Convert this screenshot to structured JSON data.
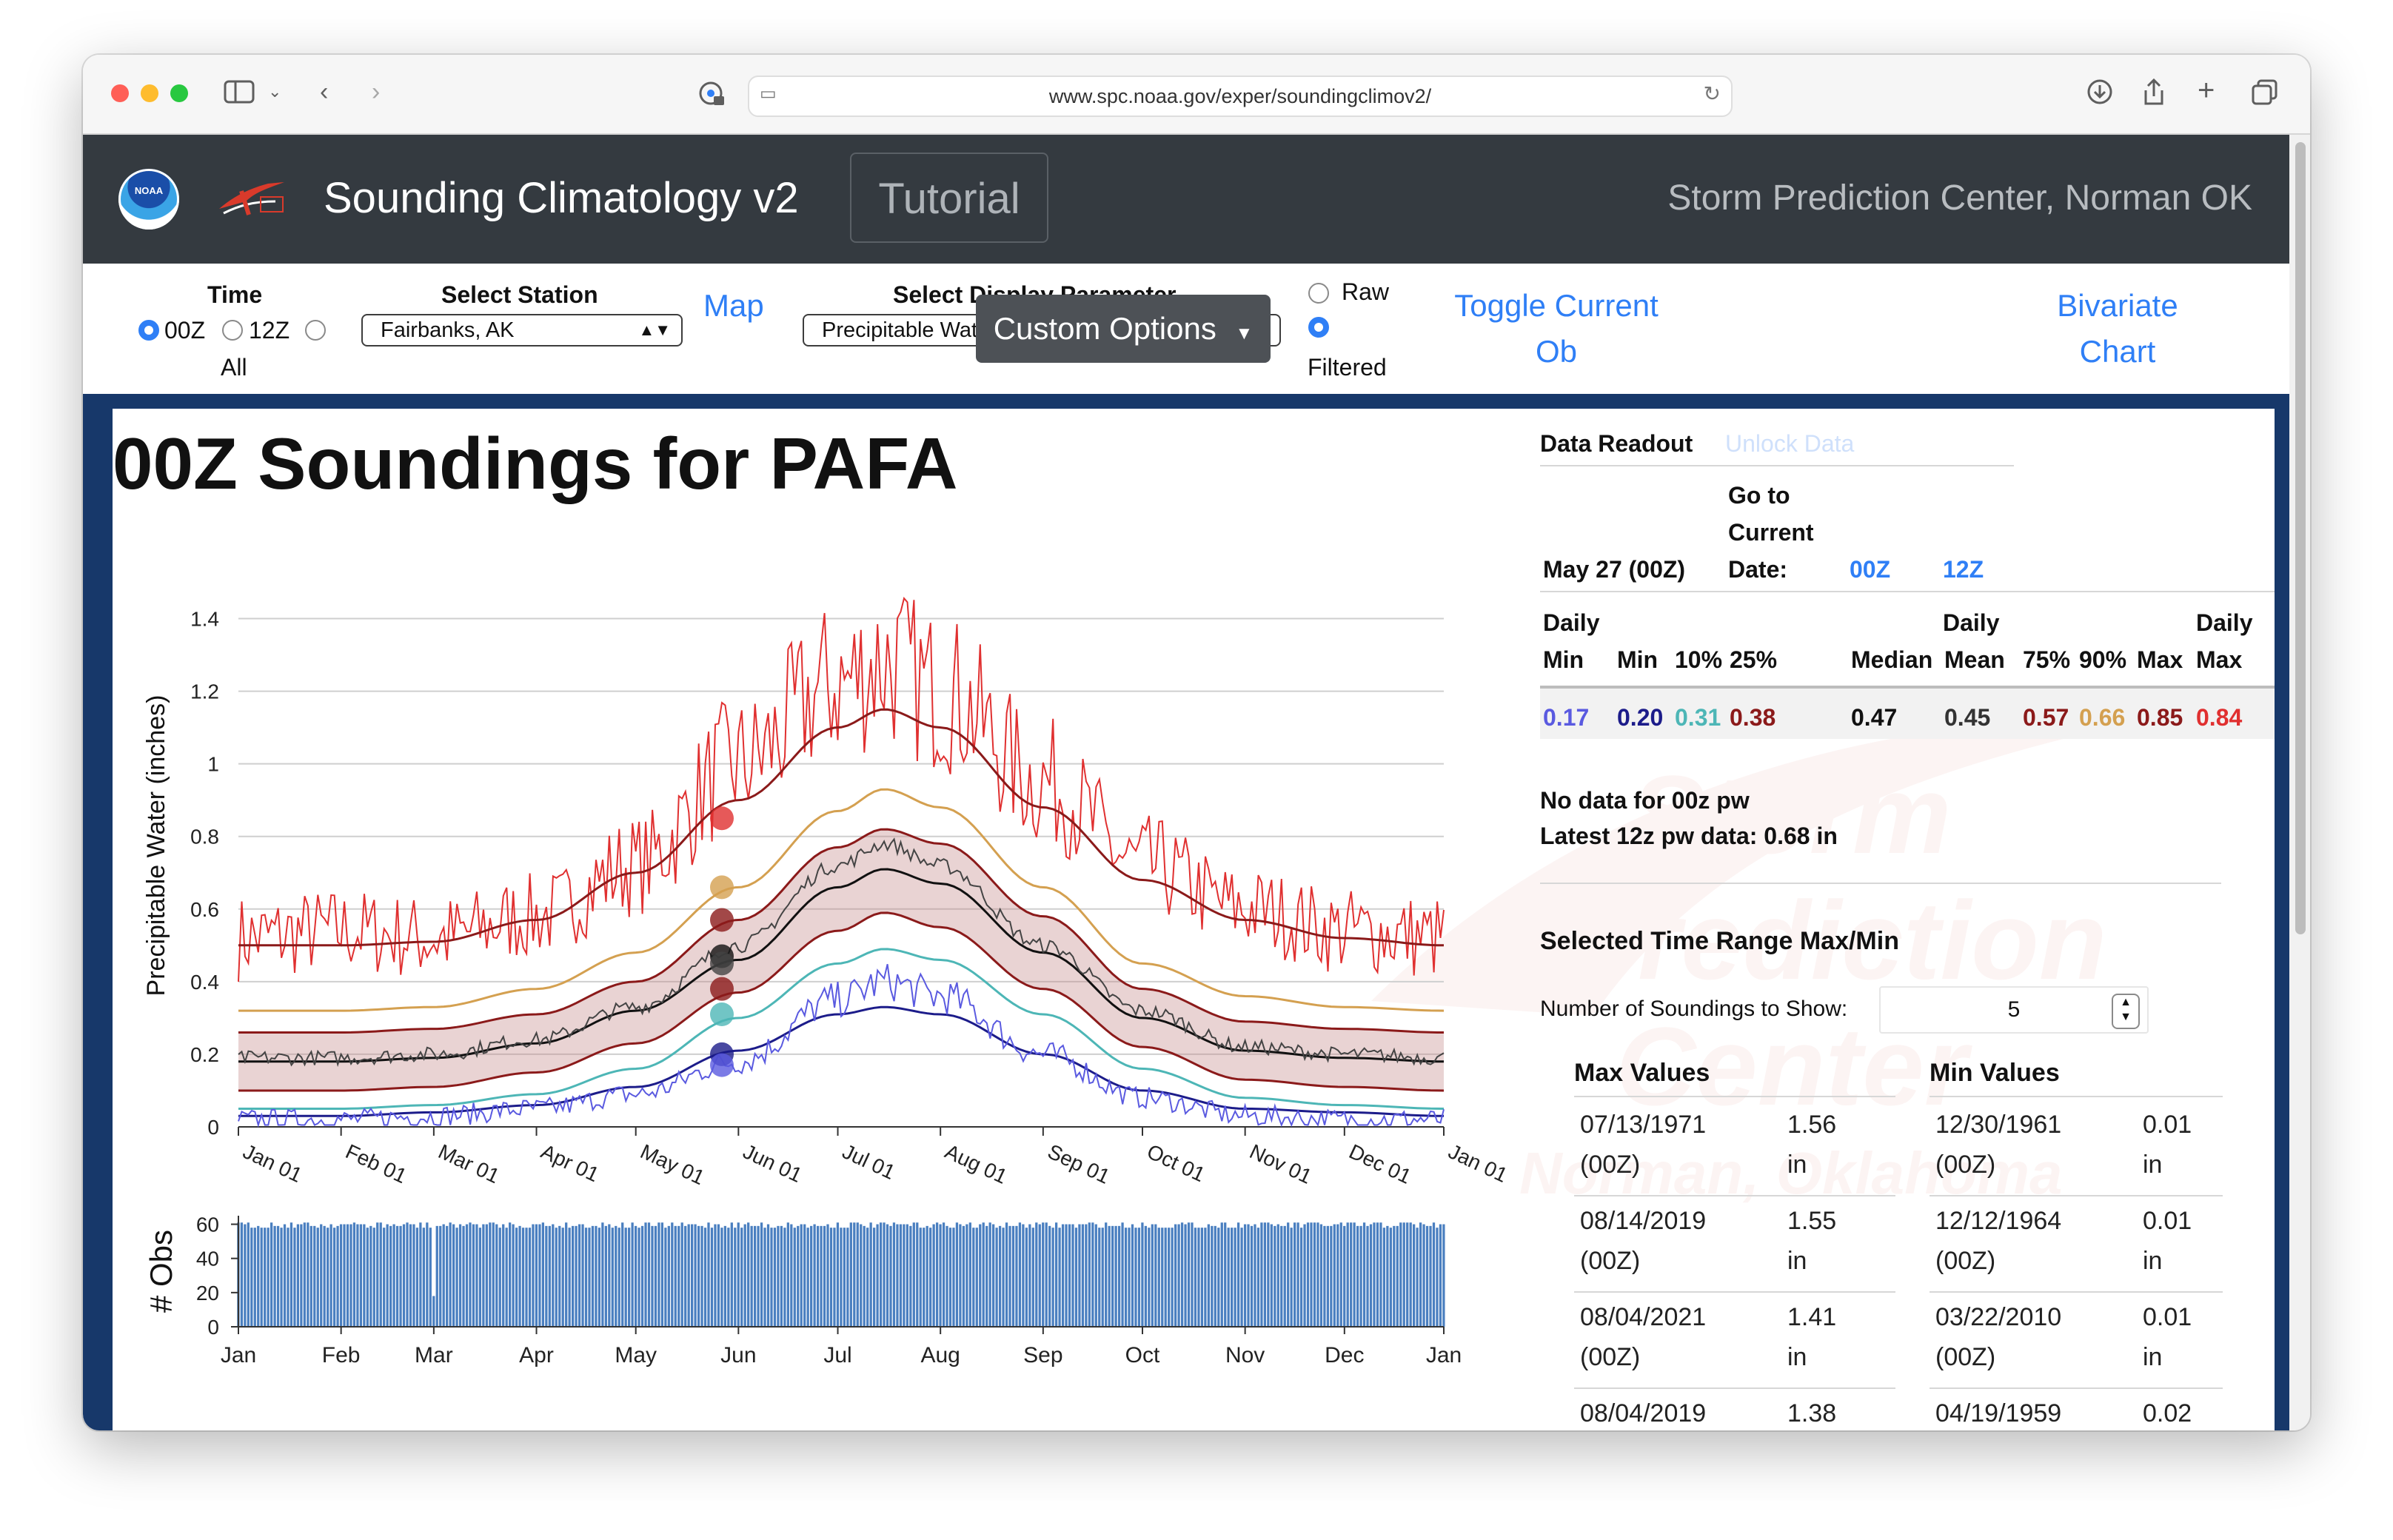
{
  "browser": {
    "url": "www.spc.noaa.gov/exper/soundingclimov2/"
  },
  "navbar": {
    "brand": "Sounding Climatology v2",
    "tutorial": "Tutorial",
    "right_text": "Storm Prediction Center, Norman OK",
    "noaa_logo_text": "NOAA"
  },
  "controls": {
    "time_label": "Time",
    "time_options": [
      "00Z",
      "12Z",
      "All"
    ],
    "time_selected": "00Z",
    "station_label": "Select Station",
    "station_value": "Fairbanks, AK",
    "map_link": "Map",
    "param_label": "Select Display Parameter",
    "param_value": "Precipitable Water (inches)",
    "raw_label": "Raw",
    "filtered_label": "Filtered",
    "toggle_line1": "Toggle Current",
    "toggle_line2": "Ob",
    "custom_options": "Custom Options",
    "bivariate_line1": "Bivariate",
    "bivariate_line2": "Chart"
  },
  "page_title": "00Z Soundings for PAFA",
  "watermark_text": [
    "Storm",
    "Prediction",
    "Center",
    "Norman, Oklahoma"
  ],
  "chart_data": [
    {
      "type": "line",
      "ylabel": "Precipitable Water (inches)",
      "ylim": [
        0,
        1.55
      ],
      "yticks": [
        "0",
        "0.2",
        "0.4",
        "0.6",
        "0.8",
        "1",
        "1.2",
        "1.4"
      ],
      "xticks": [
        "Jan 01",
        "Feb 01",
        "Mar 01",
        "Apr 01",
        "May 01",
        "Jun 01",
        "Jul 01",
        "Aug 01",
        "Sep 01",
        "Oct 01",
        "Nov 01",
        "Dec 01",
        "Jan 01"
      ],
      "grid": true,
      "series": [
        {
          "color": "#e03030",
          "key": "daily_max",
          "x_doy": [
            1,
            32,
            60,
            91,
            121,
            152,
            182,
            196,
            213,
            244,
            274,
            305,
            335,
            365
          ],
          "y": [
            0.52,
            0.54,
            0.52,
            0.58,
            0.72,
            1.0,
            1.22,
            1.28,
            1.2,
            0.95,
            0.72,
            0.6,
            0.54,
            0.52
          ],
          "noisy": true
        },
        {
          "color": "#8b1a1a",
          "key": "p90",
          "x_doy": [
            1,
            32,
            60,
            91,
            121,
            152,
            182,
            196,
            213,
            244,
            274,
            305,
            335,
            365
          ],
          "y": [
            0.5,
            0.5,
            0.51,
            0.57,
            0.7,
            0.9,
            1.1,
            1.15,
            1.1,
            0.88,
            0.68,
            0.57,
            0.52,
            0.5
          ]
        },
        {
          "color": "#d4a050",
          "key": "p75",
          "x_doy": [
            1,
            32,
            60,
            91,
            121,
            152,
            182,
            196,
            213,
            244,
            274,
            305,
            335,
            365
          ],
          "y": [
            0.32,
            0.32,
            0.33,
            0.38,
            0.48,
            0.66,
            0.87,
            0.93,
            0.88,
            0.66,
            0.45,
            0.36,
            0.33,
            0.32
          ]
        },
        {
          "color": "#8b1a1a",
          "key": "q75",
          "x_doy": [
            1,
            32,
            60,
            91,
            121,
            152,
            182,
            196,
            213,
            244,
            274,
            305,
            335,
            365
          ],
          "y": [
            0.26,
            0.26,
            0.27,
            0.31,
            0.4,
            0.57,
            0.77,
            0.82,
            0.78,
            0.58,
            0.38,
            0.29,
            0.27,
            0.26
          ]
        },
        {
          "color": "#111111",
          "key": "median",
          "x_doy": [
            1,
            32,
            60,
            91,
            121,
            152,
            182,
            196,
            213,
            244,
            274,
            305,
            335,
            365
          ],
          "y": [
            0.18,
            0.18,
            0.19,
            0.23,
            0.32,
            0.46,
            0.66,
            0.71,
            0.67,
            0.48,
            0.3,
            0.21,
            0.19,
            0.18
          ]
        },
        {
          "color": "#8b1a1a",
          "key": "q25",
          "x_doy": [
            1,
            32,
            60,
            91,
            121,
            152,
            182,
            196,
            213,
            244,
            274,
            305,
            335,
            365
          ],
          "y": [
            0.1,
            0.1,
            0.11,
            0.15,
            0.23,
            0.37,
            0.54,
            0.59,
            0.55,
            0.38,
            0.22,
            0.13,
            0.11,
            0.1
          ]
        },
        {
          "color": "#4db6b6",
          "key": "p10",
          "x_doy": [
            1,
            32,
            60,
            91,
            121,
            152,
            182,
            196,
            213,
            244,
            274,
            305,
            335,
            365
          ],
          "y": [
            0.05,
            0.05,
            0.06,
            0.09,
            0.16,
            0.3,
            0.45,
            0.49,
            0.46,
            0.31,
            0.16,
            0.08,
            0.06,
            0.05
          ]
        },
        {
          "color": "#1c1c8a",
          "key": "mean_low",
          "x_doy": [
            1,
            32,
            60,
            91,
            121,
            152,
            182,
            196,
            213,
            244,
            274,
            305,
            335,
            365
          ],
          "y": [
            0.03,
            0.03,
            0.04,
            0.06,
            0.11,
            0.21,
            0.31,
            0.33,
            0.31,
            0.2,
            0.1,
            0.05,
            0.04,
            0.03
          ]
        },
        {
          "color": "#5a5ae0",
          "key": "daily_min",
          "x_doy": [
            1,
            32,
            60,
            91,
            121,
            152,
            182,
            196,
            213,
            244,
            274,
            305,
            335,
            365
          ],
          "y": [
            0.02,
            0.02,
            0.03,
            0.05,
            0.09,
            0.18,
            0.35,
            0.4,
            0.36,
            0.2,
            0.08,
            0.03,
            0.02,
            0.02
          ],
          "noisy": true
        },
        {
          "color": "#444444",
          "key": "daily_median_raw",
          "x_doy": [
            1,
            32,
            60,
            91,
            121,
            152,
            182,
            196,
            213,
            244,
            274,
            305,
            335,
            365
          ],
          "y": [
            0.19,
            0.19,
            0.2,
            0.24,
            0.33,
            0.5,
            0.72,
            0.78,
            0.72,
            0.5,
            0.32,
            0.22,
            0.2,
            0.19
          ],
          "noisy": true
        }
      ],
      "markers_doy": 147,
      "markers": [
        {
          "color": "#e03030",
          "y": 0.85
        },
        {
          "color": "#d4a050",
          "y": 0.66
        },
        {
          "color": "#8b1a1a",
          "y": 0.57
        },
        {
          "color": "#111111",
          "y": 0.47
        },
        {
          "color": "#444444",
          "y": 0.45
        },
        {
          "color": "#8b1a1a",
          "y": 0.38
        },
        {
          "color": "#4db6b6",
          "y": 0.31
        },
        {
          "color": "#1c1c8a",
          "y": 0.2
        },
        {
          "color": "#5a5ae0",
          "y": 0.17
        }
      ]
    },
    {
      "type": "bar",
      "ylabel": "# Obs",
      "ylim": [
        0,
        65
      ],
      "yticks": [
        "0",
        "20",
        "40",
        "60"
      ],
      "xticks": [
        "Jan",
        "Feb",
        "Mar",
        "Apr",
        "May",
        "Jun",
        "Jul",
        "Aug",
        "Sep",
        "Oct",
        "Nov",
        "Dec",
        "Jan"
      ],
      "typical_count": 61,
      "low_day_doy": 60,
      "low_day_count": 18,
      "color": "#4a7fc0"
    }
  ],
  "readout": {
    "title": "Data Readout",
    "unlock": "Unlock Data",
    "date": "May 27 (00Z)",
    "goto_line1": "Go to",
    "goto_line2": "Current",
    "goto_line3": "Date:",
    "goto_00z": "00Z",
    "goto_12z": "12Z",
    "headers": {
      "daily_min_l1": "Daily",
      "daily_min_l2": "Min",
      "min": "Min",
      "p10": "10%",
      "p25": "25%",
      "daily_median_l1": "Daily",
      "daily_median_l2": "Median",
      "mean": "Mean",
      "p75": "75%",
      "p90": "90%",
      "max": "Max",
      "daily_max_l1": "Daily",
      "daily_max_l2": "Max"
    },
    "values": {
      "daily_min": "0.17",
      "min": "0.20",
      "p10": "0.31",
      "p25": "0.38",
      "daily_median": "0.47",
      "mean": "0.45",
      "p75": "0.57",
      "p90": "0.66",
      "max": "0.85",
      "daily_max": "0.84"
    },
    "colors": {
      "daily_min": "#5a5ae0",
      "min": "#1c1c8a",
      "p10": "#4db6b6",
      "p25": "#8b1a1a",
      "daily_median": "#111111",
      "mean": "#333333",
      "p75": "#8b1a1a",
      "p90": "#d4a050",
      "max": "#8b1a1a",
      "daily_max": "#e03030"
    },
    "no_data": "No data for 00z pw",
    "latest": "Latest 12z pw data: 0.68 in",
    "range_title": "Selected Time Range Max/Min",
    "num_soundings_label": "Number of Soundings to Show:",
    "num_soundings_value": "5",
    "max_header": "Max Values",
    "min_header": "Min Values",
    "max_rows": [
      {
        "date": "07/13/1971",
        "time": "(00Z)",
        "value": "1.56",
        "unit": "in"
      },
      {
        "date": "08/14/2019",
        "time": "(00Z)",
        "value": "1.55",
        "unit": "in"
      },
      {
        "date": "08/04/2021",
        "time": "(00Z)",
        "value": "1.41",
        "unit": "in"
      },
      {
        "date": "08/04/2019",
        "time": "",
        "value": "1.38",
        "unit": ""
      }
    ],
    "min_rows": [
      {
        "date": "12/30/1961",
        "time": "(00Z)",
        "value": "0.01",
        "unit": "in"
      },
      {
        "date": "12/12/1964",
        "time": "(00Z)",
        "value": "0.01",
        "unit": "in"
      },
      {
        "date": "03/22/2010",
        "time": "(00Z)",
        "value": "0.01",
        "unit": "in"
      },
      {
        "date": "04/19/1959",
        "time": "",
        "value": "0.02",
        "unit": ""
      }
    ]
  }
}
